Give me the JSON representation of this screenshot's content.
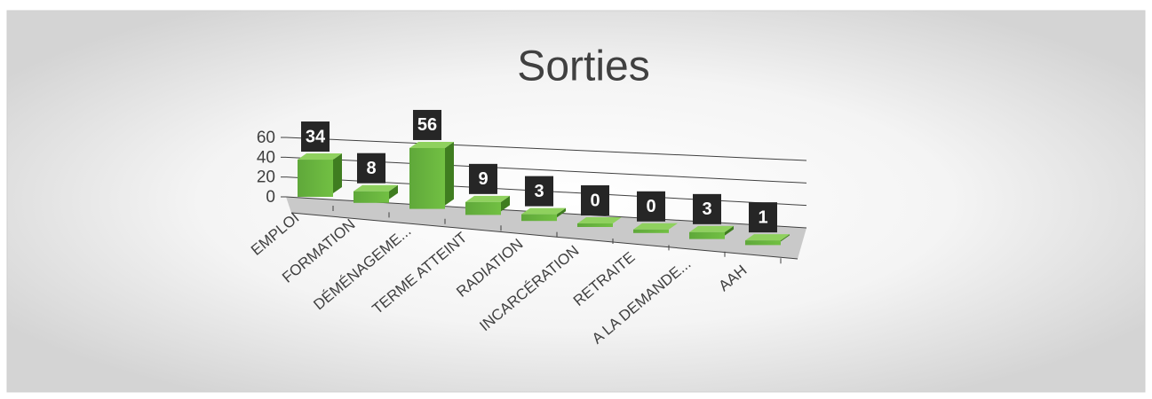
{
  "chart_data": {
    "type": "bar3d",
    "title": "Sorties",
    "categories": [
      "EMPLOI",
      "FORMATION",
      "DÉMÉNAGEME...",
      "TERME ATTEINT",
      "RADIATION",
      "INCARCÉRATION",
      "RETRAITE",
      "A LA DEMANDE...",
      "AAH"
    ],
    "values": [
      34,
      8,
      56,
      9,
      3,
      0,
      0,
      3,
      1
    ],
    "color": "#70ad47",
    "ylim": [
      0,
      60
    ],
    "yticks": [
      0,
      20,
      40,
      60
    ],
    "grid": true
  }
}
